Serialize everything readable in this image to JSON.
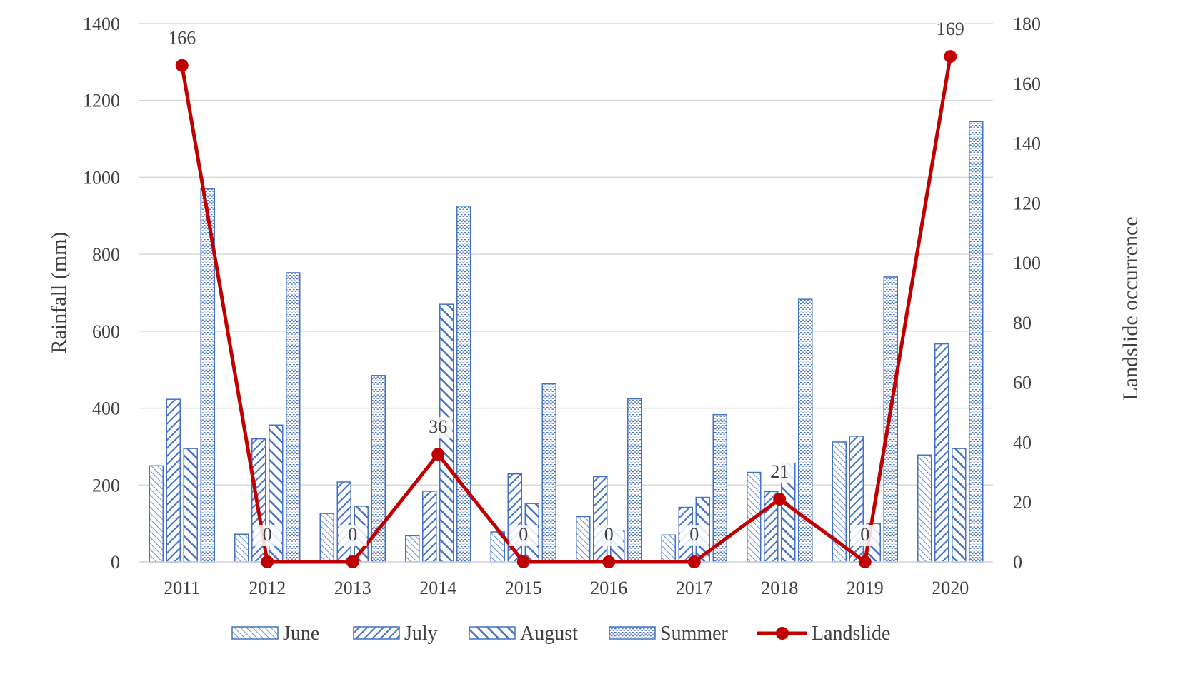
{
  "chart_data": {
    "type": "bar",
    "categories": [
      "2011",
      "2012",
      "2013",
      "2014",
      "2015",
      "2016",
      "2017",
      "2018",
      "2019",
      "2020"
    ],
    "series": [
      {
        "name": "June",
        "axis": "left",
        "kind": "bar",
        "pattern": "thin-diagonal-left",
        "values": [
          250,
          72,
          126,
          68,
          78,
          118,
          70,
          233,
          312,
          278
        ]
      },
      {
        "name": "July",
        "axis": "left",
        "kind": "bar",
        "pattern": "thick-diagonal-right",
        "values": [
          423,
          320,
          208,
          184,
          229,
          222,
          142,
          183,
          327,
          567
        ]
      },
      {
        "name": "August",
        "axis": "left",
        "kind": "bar",
        "pattern": "thick-diagonal-left",
        "values": [
          295,
          356,
          145,
          670,
          152,
          82,
          168,
          257,
          100,
          295
        ]
      },
      {
        "name": "Summer",
        "axis": "left",
        "kind": "bar",
        "pattern": "dotted-grid",
        "values": [
          970,
          752,
          485,
          925,
          463,
          424,
          383,
          683,
          741,
          1145
        ]
      },
      {
        "name": "Landslide",
        "axis": "right",
        "kind": "line",
        "values": [
          166,
          0,
          0,
          36,
          0,
          0,
          0,
          21,
          0,
          169
        ]
      }
    ],
    "ylabel": "Rainfall (mm)",
    "y2label": "Landslide occurrence",
    "ylim": [
      0,
      1400
    ],
    "y2lim": [
      0,
      180
    ],
    "yticks": [
      0,
      200,
      400,
      600,
      800,
      1000,
      1200,
      1400
    ],
    "y2ticks": [
      0,
      20,
      40,
      60,
      80,
      100,
      120,
      140,
      160,
      180
    ],
    "grid": true,
    "legend": "bottom",
    "colors": {
      "bar": "#4472c4",
      "line": "#c00000",
      "grid": "#d9d9d9",
      "text": "#404040"
    }
  }
}
